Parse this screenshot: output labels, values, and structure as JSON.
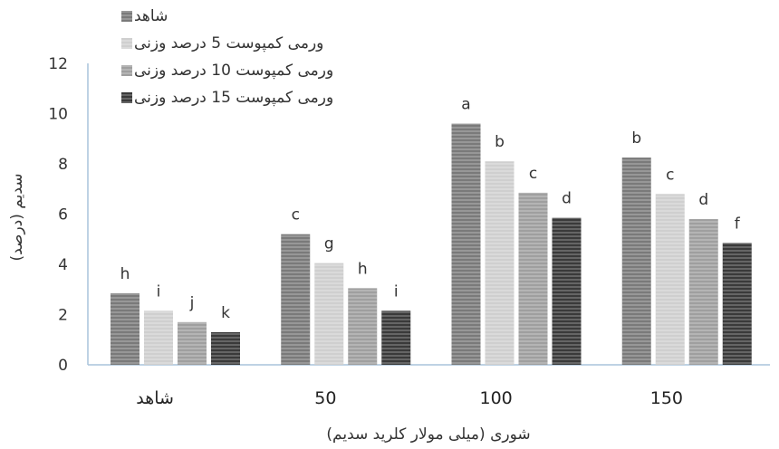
{
  "chart_data": {
    "type": "bar",
    "title": "",
    "xlabel": "شوری (میلی مولار  کلرید سدیم)",
    "ylabel": "سدیم (درصد)",
    "ylim": [
      0,
      12
    ],
    "yticks": [
      0,
      2,
      4,
      6,
      8,
      10,
      12
    ],
    "grid": false,
    "legend_position": "top-right",
    "categories": [
      "شاهد",
      "50",
      "100",
      "150"
    ],
    "series": [
      {
        "name": "شاهد",
        "values": [
          2.85,
          5.2,
          9.6,
          8.25
        ],
        "labels": [
          "h",
          "c",
          "a",
          "b"
        ],
        "color": "#7a7a7a"
      },
      {
        "name": "ورمی کمپوست 5 درصد وزنی",
        "values": [
          2.15,
          4.05,
          8.1,
          6.8
        ],
        "labels": [
          "i",
          "g",
          "b",
          "c"
        ],
        "color": "#cfcfcf"
      },
      {
        "name": "ورمی کمپوست 10 درصد وزنی",
        "values": [
          1.7,
          3.05,
          6.85,
          5.8
        ],
        "labels": [
          "j",
          "h",
          "c",
          "d"
        ],
        "color": "#9f9f9f"
      },
      {
        "name": "ورمی کمپوست 15 درصد وزنی",
        "values": [
          1.3,
          2.15,
          5.85,
          4.85
        ],
        "labels": [
          "k",
          "i",
          "d",
          "f"
        ],
        "color": "#3a3a3a"
      }
    ]
  }
}
